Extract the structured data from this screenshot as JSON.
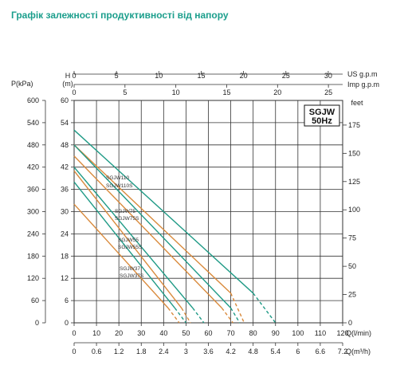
{
  "title": "Графік залежності продуктивності від напору",
  "chart_data": {
    "type": "line",
    "badge": [
      "SGJW",
      "50Hz"
    ],
    "axes": {
      "x_lmin": {
        "label": "Q(l/min)",
        "range": [
          0,
          120
        ],
        "ticks": [
          "0",
          "10",
          "20",
          "30",
          "40",
          "50",
          "60",
          "70",
          "80",
          "90",
          "100",
          "110",
          "120"
        ]
      },
      "x_m3h": {
        "label": "Q(m³/h)",
        "range": [
          0,
          7.2
        ],
        "ticks": [
          "0",
          "0.6",
          "1.2",
          "1.8",
          "2.4",
          "3",
          "3.6",
          "4.2",
          "4.8",
          "5.4",
          "6",
          "6.6",
          "7.2"
        ]
      },
      "x_usgpm": {
        "label": "US g.p.m",
        "range": [
          0,
          31.7
        ],
        "ticks": [
          "0",
          "5",
          "10",
          "15",
          "20",
          "25",
          "30"
        ]
      },
      "x_impgpm": {
        "label": "Imp g.p.m",
        "range": [
          0,
          26.4
        ],
        "ticks": [
          "0",
          "5",
          "10",
          "15",
          "20",
          "25"
        ]
      },
      "y_h": {
        "label": "H",
        "unit": "(m)",
        "range": [
          0,
          60
        ],
        "ticks": [
          "0",
          "6",
          "12",
          "18",
          "24",
          "30",
          "36",
          "42",
          "48",
          "54",
          "60"
        ]
      },
      "y_p": {
        "label": "P(kPa)",
        "range": [
          0,
          600
        ],
        "ticks": [
          "0",
          "60",
          "120",
          "180",
          "240",
          "300",
          "360",
          "420",
          "480",
          "540",
          "600"
        ]
      },
      "y_feet": {
        "label": "feet",
        "range": [
          0,
          196.8
        ],
        "ticks": [
          "0",
          "25",
          "50",
          "75",
          "100",
          "125",
          "150",
          "175"
        ]
      }
    },
    "grid": true,
    "colors": {
      "teal": "#1f9a86",
      "orange": "#d98a3c",
      "grid": "#333333"
    },
    "series": [
      {
        "name": "SGJW110",
        "color": "teal",
        "solid": [
          [
            0,
            52
          ],
          [
            80,
            8
          ]
        ],
        "dashed": [
          [
            80,
            8
          ],
          [
            90,
            0
          ]
        ]
      },
      {
        "name": "SGJW110S",
        "color": "orange",
        "solid": [
          [
            0,
            48
          ],
          [
            70,
            8
          ]
        ],
        "dashed": [
          [
            70,
            8
          ],
          [
            76,
            0
          ]
        ]
      },
      {
        "name": "SGJW75",
        "color": "teal",
        "solid": [
          [
            0,
            48
          ],
          [
            70,
            4
          ]
        ],
        "dashed": [
          [
            70,
            4
          ],
          [
            74,
            0
          ]
        ]
      },
      {
        "name": "SGJW75S",
        "color": "orange",
        "solid": [
          [
            0,
            45
          ],
          [
            66,
            4
          ]
        ],
        "dashed": [
          [
            66,
            4
          ],
          [
            71,
            0
          ]
        ]
      },
      {
        "name": "SGJW55",
        "color": "teal",
        "solid": [
          [
            0,
            42
          ],
          [
            53,
            4
          ]
        ],
        "dashed": [
          [
            53,
            4
          ],
          [
            58,
            0
          ]
        ]
      },
      {
        "name": "SGJW55S",
        "color": "orange",
        "solid": [
          [
            0,
            41
          ],
          [
            48,
            4
          ]
        ],
        "dashed": [
          [
            48,
            4
          ],
          [
            52,
            0
          ]
        ]
      },
      {
        "name": "SGJW37",
        "color": "teal",
        "solid": [
          [
            0,
            38
          ],
          [
            45,
            4
          ]
        ],
        "dashed": [
          [
            45,
            4
          ],
          [
            50,
            0
          ]
        ]
      },
      {
        "name": "SGJW37S",
        "color": "orange",
        "solid": [
          [
            0,
            32
          ],
          [
            42,
            4
          ]
        ],
        "dashed": [
          [
            42,
            4
          ],
          [
            47,
            0
          ]
        ]
      }
    ],
    "labels": [
      "SGJW110",
      "SGJW110S",
      "SGJW75",
      "SGJW75S",
      "SGJW55",
      "SGJW55S",
      "SGJW37",
      "SGJW37S"
    ]
  }
}
